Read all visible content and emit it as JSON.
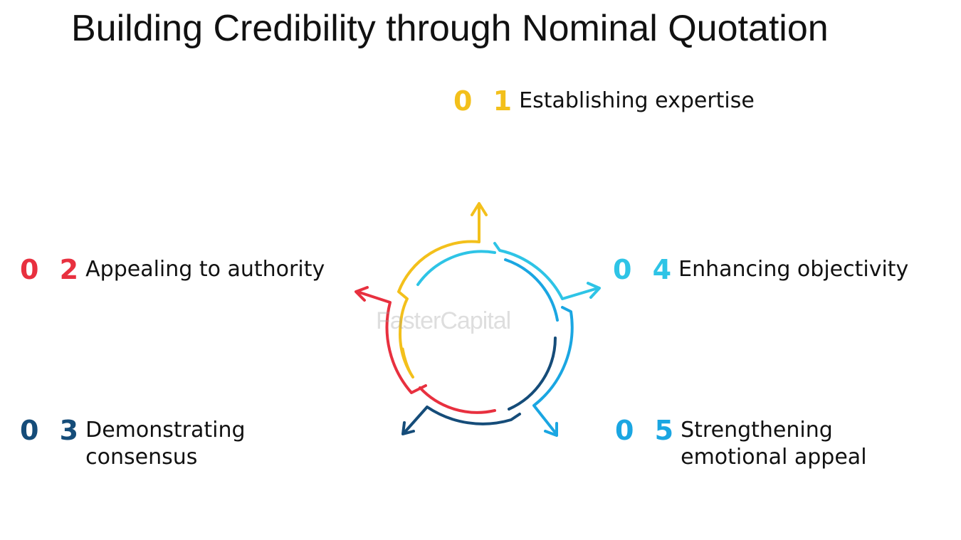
{
  "title": "Building Credibility through Nominal Quotation",
  "watermark": "FasterCapital",
  "colors": {
    "yellow": "#f3c01b",
    "red": "#e8303f",
    "navy": "#154c79",
    "cyan": "#2ec4e6",
    "blue": "#1aa6e2"
  },
  "items": [
    {
      "num": "0 1",
      "lines": [
        "Establishing expertise"
      ],
      "color": "#f3c01b"
    },
    {
      "num": "0 2",
      "lines": [
        "Appealing to authority"
      ],
      "color": "#e8303f"
    },
    {
      "num": "0 3",
      "lines": [
        "Demonstrating",
        "consensus"
      ],
      "color": "#154c79"
    },
    {
      "num": "0 4",
      "lines": [
        "Enhancing objectivity"
      ],
      "color": "#2ec4e6"
    },
    {
      "num": "0 5",
      "lines": [
        "Strengthening",
        "emotional appeal"
      ],
      "color": "#1aa6e2"
    }
  ]
}
